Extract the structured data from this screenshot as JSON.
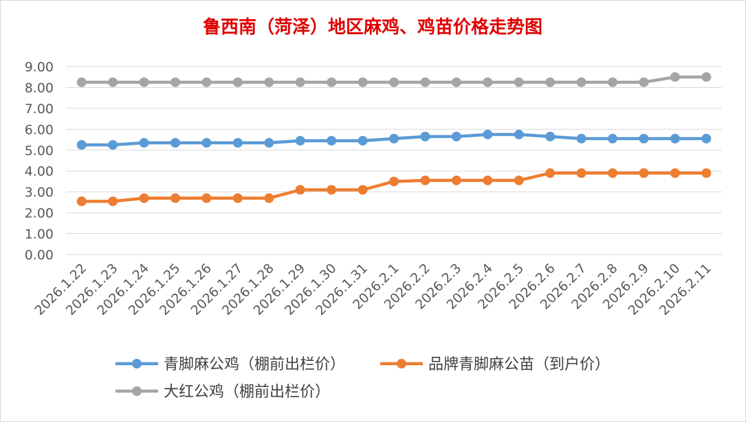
{
  "colors": {
    "title": "#e00000",
    "grid": "#d9d9d9",
    "series": [
      "#5b9bd5",
      "#ed7d31",
      "#a5a5a5"
    ]
  },
  "chart_data": {
    "type": "line",
    "title": "鲁西南（菏泽）地区麻鸡、鸡苗价格走势图",
    "xlabel": "",
    "ylabel": "",
    "ylim": [
      0,
      9
    ],
    "yticks": [
      "0.00",
      "1.00",
      "2.00",
      "3.00",
      "4.00",
      "5.00",
      "6.00",
      "7.00",
      "8.00",
      "9.00"
    ],
    "grid": "horizontal",
    "legend_position": "bottom",
    "categories": [
      "2026.1.22",
      "2026.1.23",
      "2026.1.24",
      "2026.1.25",
      "2026.1.26",
      "2026.1.27",
      "2026.1.28",
      "2026.1.29",
      "2026.1.30",
      "2026.1.31",
      "2026.2.1",
      "2026.2.2",
      "2026.2.3",
      "2026.2.4",
      "2026.2.5",
      "2026.2.6",
      "2026.2.7",
      "2026.2.8",
      "2026.2.9",
      "2026.2.10",
      "2026.2.11"
    ],
    "series": [
      {
        "name": "青脚麻公鸡（棚前出栏价）",
        "values": [
          5.25,
          5.25,
          5.35,
          5.35,
          5.35,
          5.35,
          5.35,
          5.45,
          5.45,
          5.45,
          5.55,
          5.65,
          5.65,
          5.75,
          5.75,
          5.65,
          5.55,
          5.55,
          5.55,
          5.55,
          5.55
        ]
      },
      {
        "name": "品牌青脚麻公苗（到户价）",
        "values": [
          2.55,
          2.55,
          2.7,
          2.7,
          2.7,
          2.7,
          2.7,
          3.1,
          3.1,
          3.1,
          3.5,
          3.55,
          3.55,
          3.55,
          3.55,
          3.9,
          3.9,
          3.9,
          3.9,
          3.9,
          3.9
        ]
      },
      {
        "name": "大红公鸡（棚前出栏价）",
        "values": [
          8.25,
          8.25,
          8.25,
          8.25,
          8.25,
          8.25,
          8.25,
          8.25,
          8.25,
          8.25,
          8.25,
          8.25,
          8.25,
          8.25,
          8.25,
          8.25,
          8.25,
          8.25,
          8.25,
          8.5,
          8.5
        ]
      }
    ]
  }
}
